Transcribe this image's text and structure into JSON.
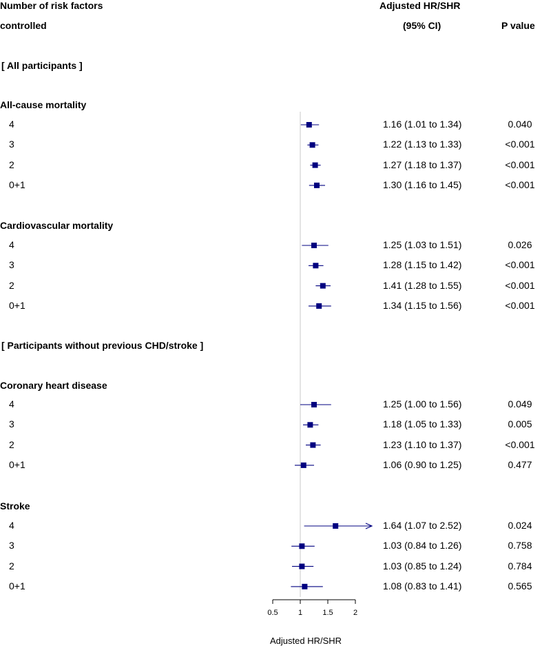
{
  "header": {
    "col1_line1": "Number of risk factors",
    "col1_line2": "controlled",
    "col2_line1": "Adjusted HR/SHR",
    "col2_line2": "(95% CI)",
    "col3": "P value"
  },
  "colors": {
    "marker": "#000080",
    "refline": "#c8c8c8",
    "axis": "#000000"
  },
  "chart_data": {
    "type": "forest",
    "xlabel": "Adjusted HR/SHR",
    "xlim": [
      0.5,
      2
    ],
    "ticks": [
      "0.5",
      "1",
      "1.5",
      "2"
    ],
    "reference_line": 1,
    "groups": [
      {
        "title": "[ All participants ]",
        "outcomes": [
          {
            "name": "All-cause mortality",
            "rows": [
              {
                "label": "4",
                "hr": 1.16,
                "lo": 1.01,
                "hi": 1.34,
                "text": "1.16 (1.01 to 1.34)",
                "p": "0.040"
              },
              {
                "label": "3",
                "hr": 1.22,
                "lo": 1.13,
                "hi": 1.33,
                "text": "1.22 (1.13 to 1.33)",
                "p": "<0.001"
              },
              {
                "label": "2",
                "hr": 1.27,
                "lo": 1.18,
                "hi": 1.37,
                "text": "1.27 (1.18 to 1.37)",
                "p": "<0.001"
              },
              {
                "label": "0+1",
                "hr": 1.3,
                "lo": 1.16,
                "hi": 1.45,
                "text": "1.30 (1.16 to 1.45)",
                "p": "<0.001"
              }
            ]
          },
          {
            "name": "Cardiovascular mortality",
            "rows": [
              {
                "label": "4",
                "hr": 1.25,
                "lo": 1.03,
                "hi": 1.51,
                "text": "1.25 (1.03 to 1.51)",
                "p": "0.026"
              },
              {
                "label": "3",
                "hr": 1.28,
                "lo": 1.15,
                "hi": 1.42,
                "text": "1.28 (1.15 to 1.42)",
                "p": "<0.001"
              },
              {
                "label": "2",
                "hr": 1.41,
                "lo": 1.28,
                "hi": 1.55,
                "text": "1.41 (1.28 to 1.55)",
                "p": "<0.001"
              },
              {
                "label": "0+1",
                "hr": 1.34,
                "lo": 1.15,
                "hi": 1.56,
                "text": "1.34 (1.15 to 1.56)",
                "p": "<0.001"
              }
            ]
          }
        ]
      },
      {
        "title": "[ Participants without previous CHD/stroke ]",
        "outcomes": [
          {
            "name": "Coronary heart disease",
            "rows": [
              {
                "label": "4",
                "hr": 1.25,
                "lo": 1.0,
                "hi": 1.56,
                "text": "1.25 (1.00 to 1.56)",
                "p": "0.049"
              },
              {
                "label": "3",
                "hr": 1.18,
                "lo": 1.05,
                "hi": 1.33,
                "text": "1.18 (1.05 to 1.33)",
                "p": "0.005"
              },
              {
                "label": "2",
                "hr": 1.23,
                "lo": 1.1,
                "hi": 1.37,
                "text": "1.23 (1.10 to 1.37)",
                "p": "<0.001"
              },
              {
                "label": "0+1",
                "hr": 1.06,
                "lo": 0.9,
                "hi": 1.25,
                "text": "1.06 (0.90 to 1.25)",
                "p": "0.477"
              }
            ]
          },
          {
            "name": "Stroke",
            "rows": [
              {
                "label": "4",
                "hr": 1.64,
                "lo": 1.07,
                "hi": 2.52,
                "text": "1.64 (1.07 to 2.52)",
                "p": "0.024"
              },
              {
                "label": "3",
                "hr": 1.03,
                "lo": 0.84,
                "hi": 1.26,
                "text": "1.03 (0.84 to 1.26)",
                "p": "0.758"
              },
              {
                "label": "2",
                "hr": 1.03,
                "lo": 0.85,
                "hi": 1.24,
                "text": "1.03 (0.85 to 1.24)",
                "p": "0.784"
              },
              {
                "label": "0+1",
                "hr": 1.08,
                "lo": 0.83,
                "hi": 1.41,
                "text": "1.08 (0.83 to 1.41)",
                "p": "0.565"
              }
            ]
          }
        ]
      }
    ]
  }
}
